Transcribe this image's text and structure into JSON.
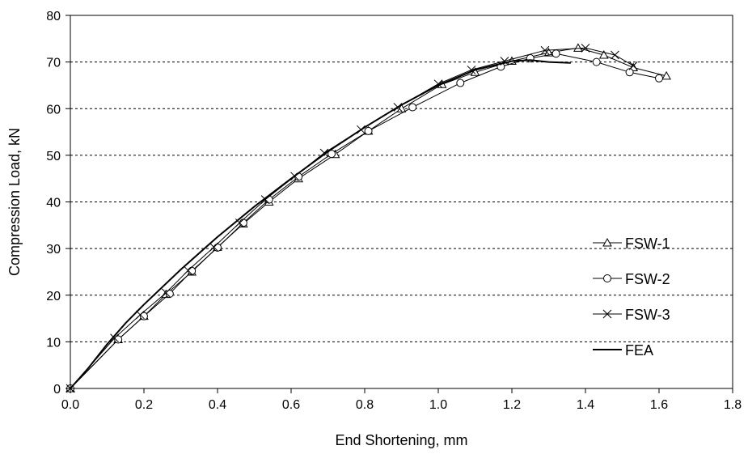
{
  "chart_data": {
    "type": "line",
    "xlabel": "End Shortening, mm",
    "ylabel": "Compression Load, kN",
    "xlim": [
      0,
      1.8
    ],
    "ylim": [
      0,
      80
    ],
    "xticks": [
      "0.0",
      "0.2",
      "0.4",
      "0.6",
      "0.8",
      "1.0",
      "1.2",
      "1.4",
      "1.6",
      "1.8"
    ],
    "yticks": [
      "0",
      "10",
      "20",
      "30",
      "40",
      "50",
      "60",
      "70",
      "80"
    ],
    "grid": "horizontal-dashed",
    "legend_position": "right-lower",
    "series": [
      {
        "name": "FSW-1",
        "marker": "triangle",
        "color": "#000000",
        "x": [
          0,
          0.13,
          0.2,
          0.26,
          0.33,
          0.4,
          0.47,
          0.54,
          0.62,
          0.72,
          0.81,
          0.9,
          1.01,
          1.1,
          1.2,
          1.3,
          1.38,
          1.45,
          1.53,
          1.62
        ],
        "y": [
          0,
          10.5,
          15.5,
          20.2,
          25.0,
          30.3,
          35.3,
          40.0,
          45.0,
          50.2,
          55.2,
          60.0,
          65.2,
          67.8,
          70.2,
          72.0,
          73.0,
          71.5,
          68.8,
          67.0
        ]
      },
      {
        "name": "FSW-2",
        "marker": "circle",
        "color": "#000000",
        "x": [
          0,
          0.13,
          0.2,
          0.27,
          0.33,
          0.4,
          0.47,
          0.54,
          0.62,
          0.71,
          0.81,
          0.93,
          1.06,
          1.17,
          1.25,
          1.32,
          1.43,
          1.52,
          1.6
        ],
        "y": [
          0,
          10.5,
          15.5,
          20.3,
          25.2,
          30.2,
          35.5,
          40.5,
          45.4,
          50.3,
          55.2,
          60.3,
          65.5,
          69.0,
          70.8,
          71.8,
          70.0,
          67.8,
          66.5
        ]
      },
      {
        "name": "FSW-3",
        "marker": "x",
        "color": "#000000",
        "x": [
          0,
          0.12,
          0.19,
          0.26,
          0.32,
          0.39,
          0.46,
          0.53,
          0.61,
          0.69,
          0.79,
          0.89,
          1.0,
          1.09,
          1.18,
          1.29,
          1.4,
          1.48,
          1.53
        ],
        "y": [
          0,
          10.8,
          15.8,
          20.5,
          25.3,
          30.3,
          35.5,
          40.5,
          45.5,
          50.5,
          55.5,
          60.3,
          65.3,
          68.3,
          70.2,
          72.5,
          73.0,
          71.5,
          69.2
        ]
      },
      {
        "name": "FEA",
        "marker": "none",
        "color": "#000000",
        "x": [
          0,
          0.05,
          0.1,
          0.15,
          0.2,
          0.3,
          0.4,
          0.5,
          0.6,
          0.7,
          0.8,
          0.9,
          1.0,
          1.1,
          1.2,
          1.25,
          1.3,
          1.36
        ],
        "y": [
          0,
          4.5,
          9.5,
          14.0,
          18.0,
          25.5,
          32.5,
          39.0,
          45.0,
          50.8,
          56.0,
          60.8,
          65.0,
          68.3,
          70.2,
          70.4,
          70.0,
          69.8
        ]
      }
    ]
  }
}
